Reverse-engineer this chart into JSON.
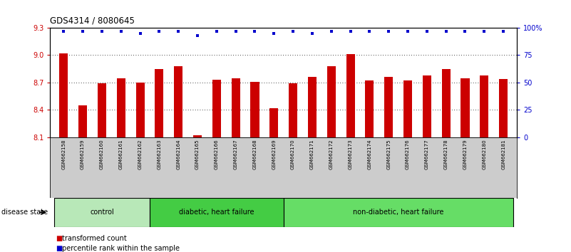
{
  "title": "GDS4314 / 8080645",
  "samples": [
    "GSM662158",
    "GSM662159",
    "GSM662160",
    "GSM662161",
    "GSM662162",
    "GSM662163",
    "GSM662164",
    "GSM662165",
    "GSM662166",
    "GSM662167",
    "GSM662168",
    "GSM662169",
    "GSM662170",
    "GSM662171",
    "GSM662172",
    "GSM662173",
    "GSM662174",
    "GSM662175",
    "GSM662176",
    "GSM662177",
    "GSM662178",
    "GSM662179",
    "GSM662180",
    "GSM662181"
  ],
  "bar_values": [
    9.02,
    8.45,
    8.69,
    8.75,
    8.7,
    8.85,
    8.88,
    8.12,
    8.73,
    8.75,
    8.71,
    8.42,
    8.69,
    8.76,
    8.88,
    9.01,
    8.72,
    8.76,
    8.72,
    8.78,
    8.85,
    8.75,
    8.78,
    8.74
  ],
  "percentile_values": [
    97,
    97,
    97,
    97,
    95,
    97,
    97,
    93,
    97,
    97,
    97,
    95,
    97,
    95,
    97,
    97,
    97,
    97,
    97,
    97,
    97,
    97,
    97,
    97
  ],
  "ylim_left": [
    8.1,
    9.3
  ],
  "ylim_right": [
    0,
    100
  ],
  "yticks_left": [
    8.1,
    8.4,
    8.7,
    9.0,
    9.3
  ],
  "yticks_right": [
    0,
    25,
    50,
    75,
    100
  ],
  "ytick_labels_left": [
    "8.1",
    "8.4",
    "8.7",
    "9.0",
    "9.3"
  ],
  "ytick_labels_right": [
    "0",
    "25",
    "50",
    "75",
    "100%"
  ],
  "bar_color": "#cc0000",
  "dot_color": "#0000cc",
  "group_defs": [
    {
      "label": "control",
      "start": 0,
      "end": 4,
      "color": "#b8e8b8"
    },
    {
      "label": "diabetic, heart failure",
      "start": 5,
      "end": 11,
      "color": "#44cc44"
    },
    {
      "label": "non-diabetic, heart failure",
      "start": 12,
      "end": 23,
      "color": "#66dd66"
    }
  ],
  "disease_state_label": "disease state",
  "legend_items": [
    {
      "label": "transformed count",
      "color": "#cc0000"
    },
    {
      "label": "percentile rank within the sample",
      "color": "#0000cc"
    }
  ]
}
